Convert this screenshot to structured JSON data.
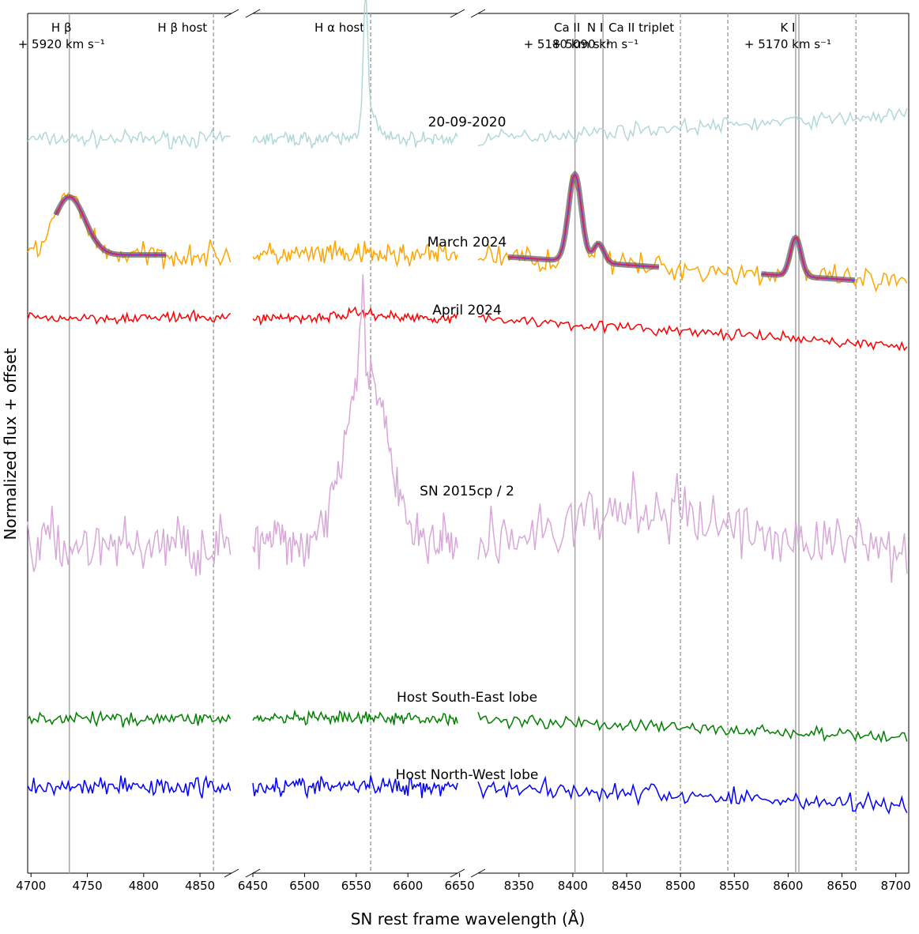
{
  "chart_data": {
    "type": "line",
    "xlabel": "SN rest frame wavelength (Å)",
    "ylabel": "Normalized flux + offset",
    "grid": false,
    "panels": [
      {
        "id": "hbeta",
        "xlim": [
          4697,
          4878
        ],
        "ticks": [
          4700,
          4750,
          4800,
          4850
        ]
      },
      {
        "id": "halpha",
        "xlim": [
          6450,
          6648
        ],
        "ticks": [
          6450,
          6500,
          6550,
          6600,
          6650
        ]
      },
      {
        "id": "cair",
        "xlim": [
          8312,
          8712
        ],
        "ticks": [
          8350,
          8400,
          8450,
          8500,
          8550,
          8600,
          8650,
          8700
        ]
      }
    ],
    "reference_lines": [
      {
        "panel": "hbeta",
        "x": 4734,
        "style": "solid"
      },
      {
        "panel": "hbeta",
        "x": 4862,
        "style": "dashed"
      },
      {
        "panel": "halpha",
        "x": 6564,
        "style": "dashed"
      },
      {
        "panel": "cair",
        "x": 8402,
        "style": "solid"
      },
      {
        "panel": "cair",
        "x": 8428,
        "style": "solid"
      },
      {
        "panel": "cair",
        "x": 8500,
        "style": "dashed"
      },
      {
        "panel": "cair",
        "x": 8544,
        "style": "dashed"
      },
      {
        "panel": "cair",
        "x": 8663,
        "style": "dashed"
      },
      {
        "panel": "cair",
        "x": 8607,
        "style": "solid"
      },
      {
        "panel": "cair",
        "x": 8610,
        "style": "solid"
      }
    ],
    "line_labels": [
      {
        "panel": "hbeta",
        "x": 4734,
        "lines": [
          "H β",
          "+ 5920  km s⁻¹"
        ]
      },
      {
        "panel": "hbeta",
        "x": 4862,
        "lines": [
          "H β host"
        ]
      },
      {
        "panel": "halpha",
        "x": 6564,
        "lines": [
          "H α host"
        ]
      },
      {
        "panel": "cair",
        "x": 8402,
        "lines": [
          "Ca II",
          "+ 5180 km s⁻¹"
        ]
      },
      {
        "panel": "cair",
        "x": 8428,
        "lines": [
          "N I",
          "+ 5090 km s⁻¹"
        ]
      },
      {
        "panel": "cair",
        "x": 8500,
        "lines": [
          "Ca II triplet"
        ]
      },
      {
        "panel": "cair",
        "x": 8607,
        "lines": [
          "K I",
          "+ 5170  km s⁻¹"
        ]
      }
    ],
    "series": [
      {
        "name": "20-09-2020",
        "color": "#b2d8d8",
        "offset": 6.6,
        "features": [
          {
            "panel": "halpha",
            "center": 6559,
            "width": 2.2,
            "amp": 1.35
          },
          {
            "panel": "halpha",
            "center": 6563,
            "width": 7,
            "amp": 0.25
          }
        ],
        "slope": {
          "cair": 0.25
        }
      },
      {
        "name": "March 2024",
        "color": "#ffa500",
        "offset": 5.4,
        "fit": true,
        "features": [
          {
            "panel": "hbeta",
            "center": 4734,
            "width": 14,
            "amp": 0.6
          },
          {
            "panel": "cair",
            "center": 8402,
            "width": 6,
            "amp": 0.9
          },
          {
            "panel": "cair",
            "center": 8424,
            "width": 5,
            "amp": 0.2
          },
          {
            "panel": "cair",
            "center": 8607,
            "width": 5,
            "amp": 0.4
          }
        ],
        "slope": {
          "cair": -0.3
        }
      },
      {
        "name": "April 2024",
        "color": "#ff0000",
        "offset": 4.75,
        "features": [
          {
            "panel": "halpha",
            "center": 6555,
            "width": 18,
            "amp": 0.05
          }
        ],
        "slope": {
          "cair": -0.3
        }
      },
      {
        "name": "SN 2015cp / 2",
        "color": "#d8a8d8",
        "offset": 2.4,
        "features": [
          {
            "panel": "halpha",
            "center": 6558,
            "width": 20,
            "amp": 1.9
          },
          {
            "panel": "halpha",
            "center": 6556,
            "width": 2,
            "amp": 0.6
          },
          {
            "panel": "cair",
            "center": 8470,
            "width": 70,
            "amp": 0.35
          }
        ],
        "slope": {}
      },
      {
        "name": "Host South-East lobe",
        "color": "#008000",
        "offset": 0.6,
        "features": [],
        "slope": {
          "cair": -0.2
        }
      },
      {
        "name": "Host North-West lobe",
        "color": "#0000ff",
        "offset": -0.1,
        "features": [],
        "slope": {
          "cair": -0.2
        }
      }
    ]
  }
}
